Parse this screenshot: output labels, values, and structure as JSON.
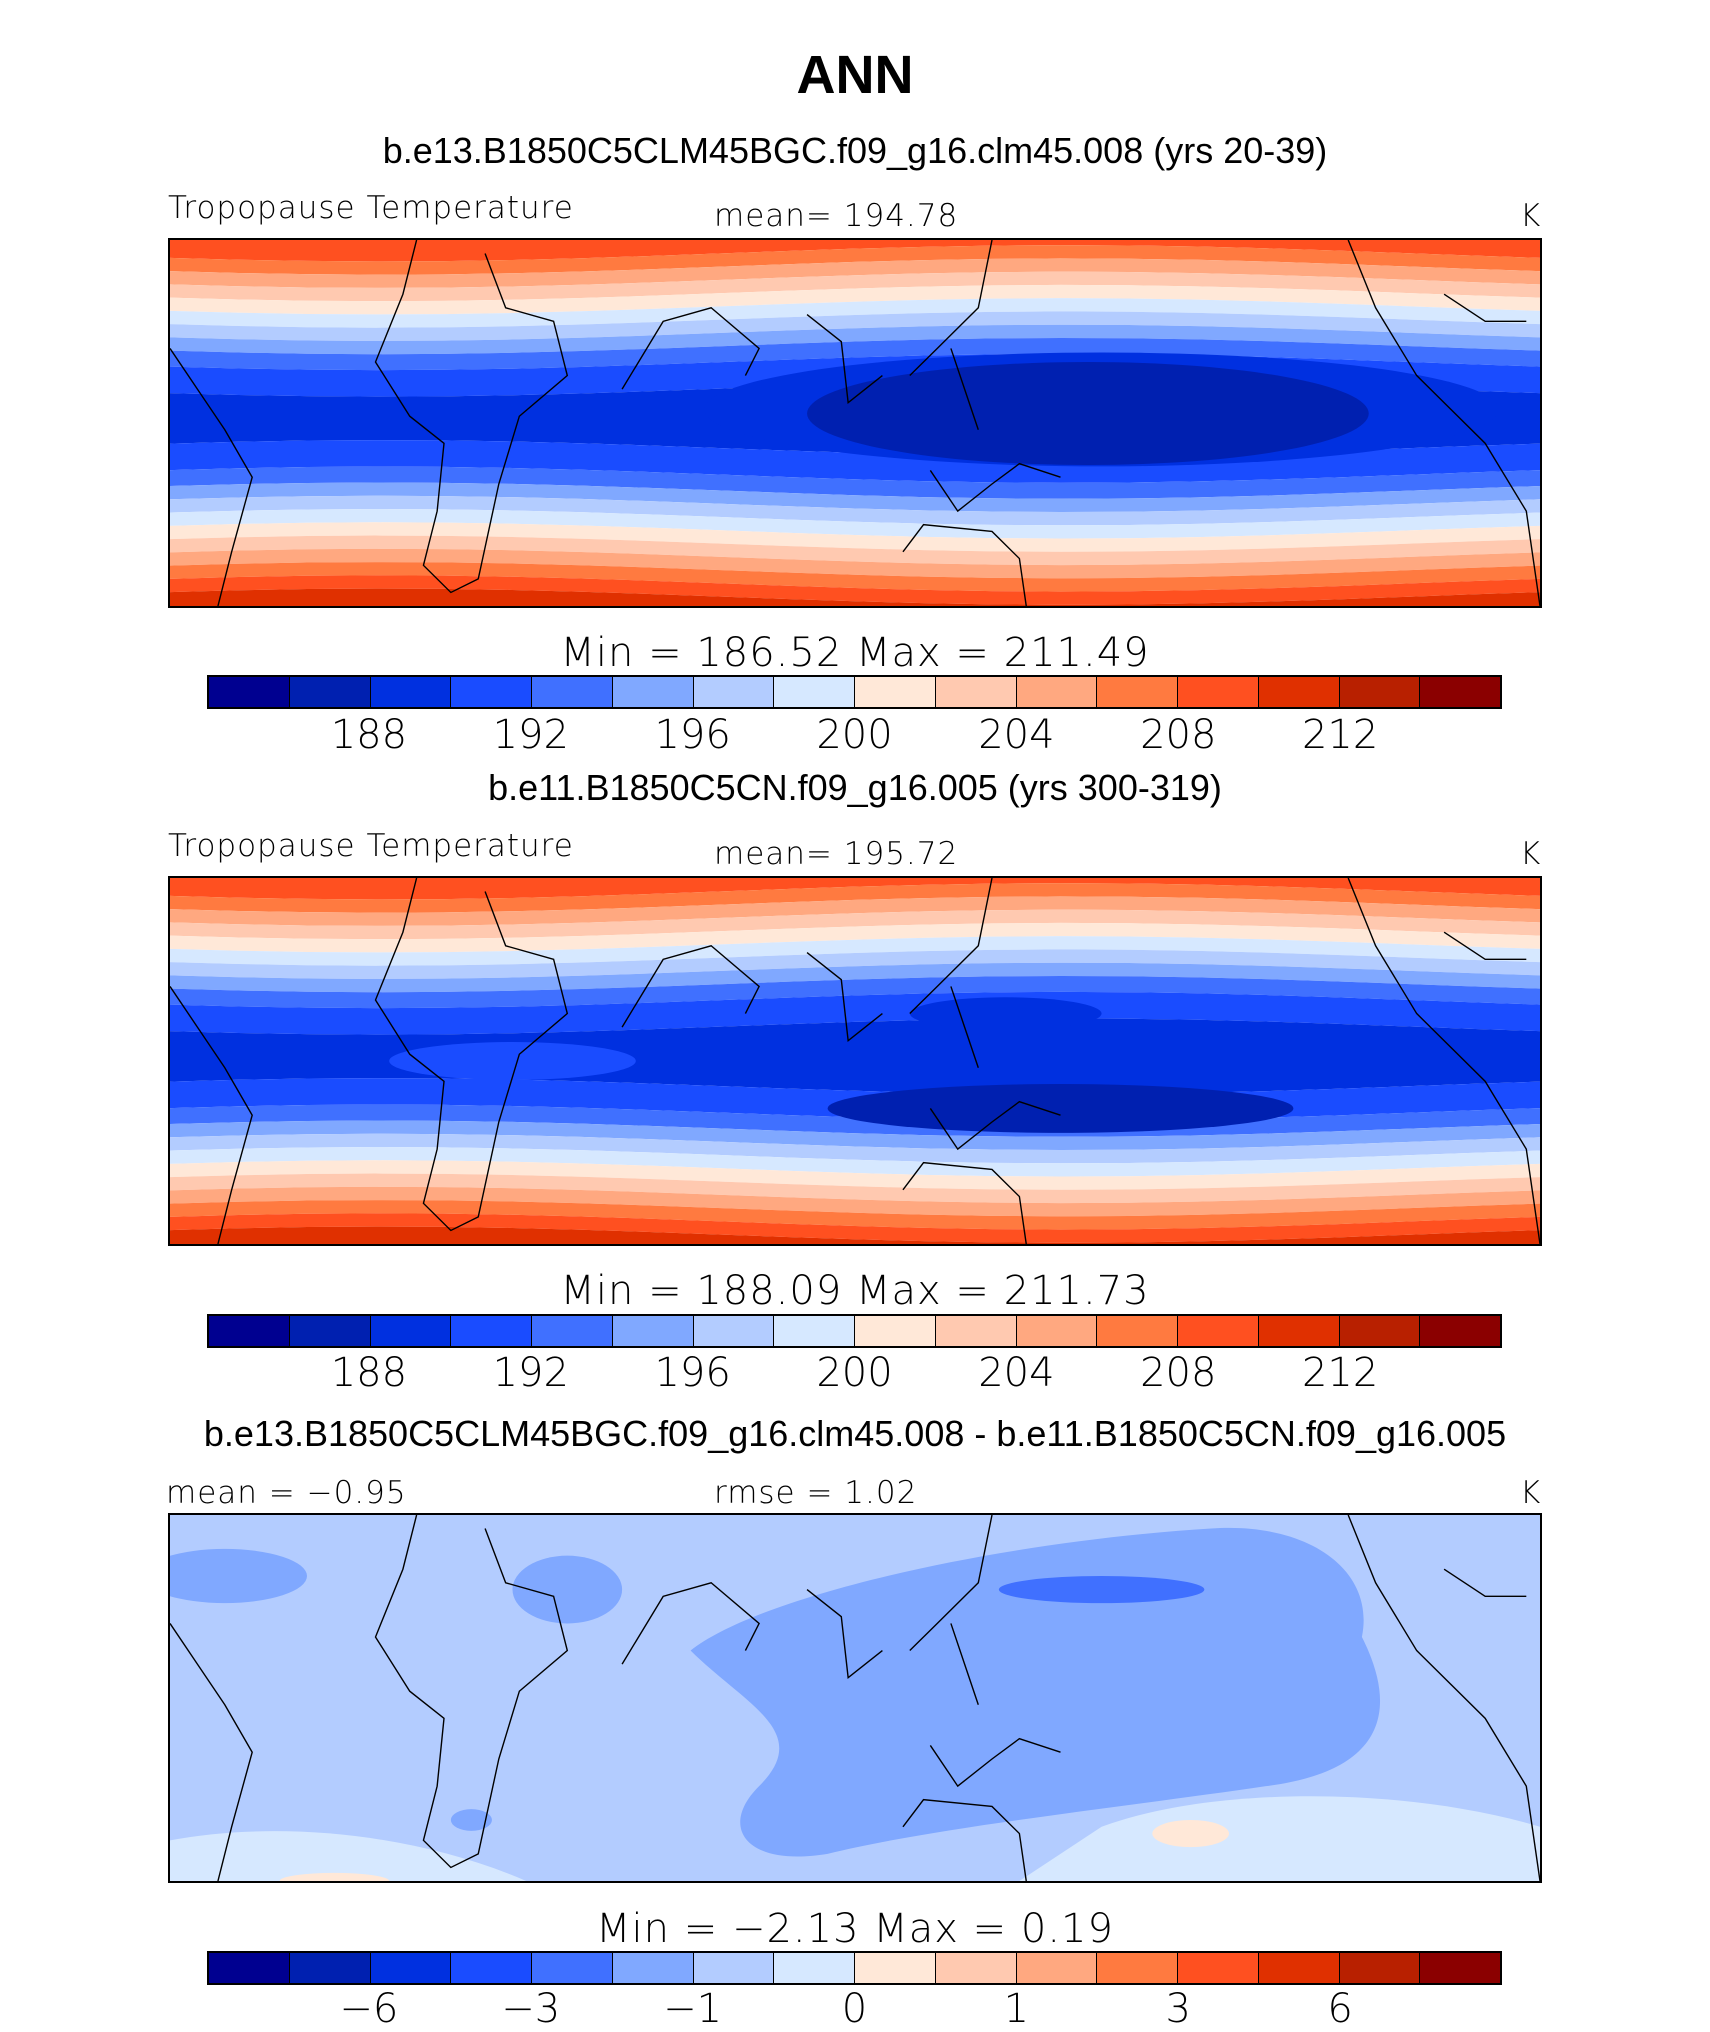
{
  "title": "ANN",
  "palette": [
    "#000090",
    "#0020b0",
    "#0030e0",
    "#1a4cff",
    "#4070ff",
    "#80a8ff",
    "#b3ccff",
    "#d6e8ff",
    "#ffe8d8",
    "#ffc9b0",
    "#ffa880",
    "#ff7a40",
    "#ff5020",
    "#e03000",
    "#b82000",
    "#8b0000"
  ],
  "panels": [
    {
      "subtitle": "b.e13.B1850C5CLM45BGC.f09_g16.clm45.008 (yrs 20-39)",
      "left_label": "Tropopause Temperature",
      "center_label": "mean=  194.78",
      "units": "K",
      "minmax": "Min  =  186.52  Max  =  211.49",
      "ticks": [
        "188",
        "192",
        "196",
        "200",
        "204",
        "208",
        "212"
      ]
    },
    {
      "subtitle": "b.e11.B1850C5CN.f09_g16.005 (yrs 300-319)",
      "left_label": "Tropopause Temperature",
      "center_label": "mean=  195.72",
      "units": "K",
      "minmax": "Min  =  188.09  Max  =  211.73",
      "ticks": [
        "188",
        "192",
        "196",
        "200",
        "204",
        "208",
        "212"
      ]
    },
    {
      "subtitle": "b.e13.B1850C5CLM45BGC.f09_g16.clm45.008 - b.e11.B1850C5CN.f09_g16.005",
      "left_label": "mean =    −0.95",
      "center_label": "rmse =     1.02",
      "units": "K",
      "minmax": "Min  =    −2.13  Max  =     0.19",
      "ticks": [
        "−6",
        "−3",
        "−1",
        "0",
        "1",
        "3",
        "6"
      ]
    }
  ]
}
